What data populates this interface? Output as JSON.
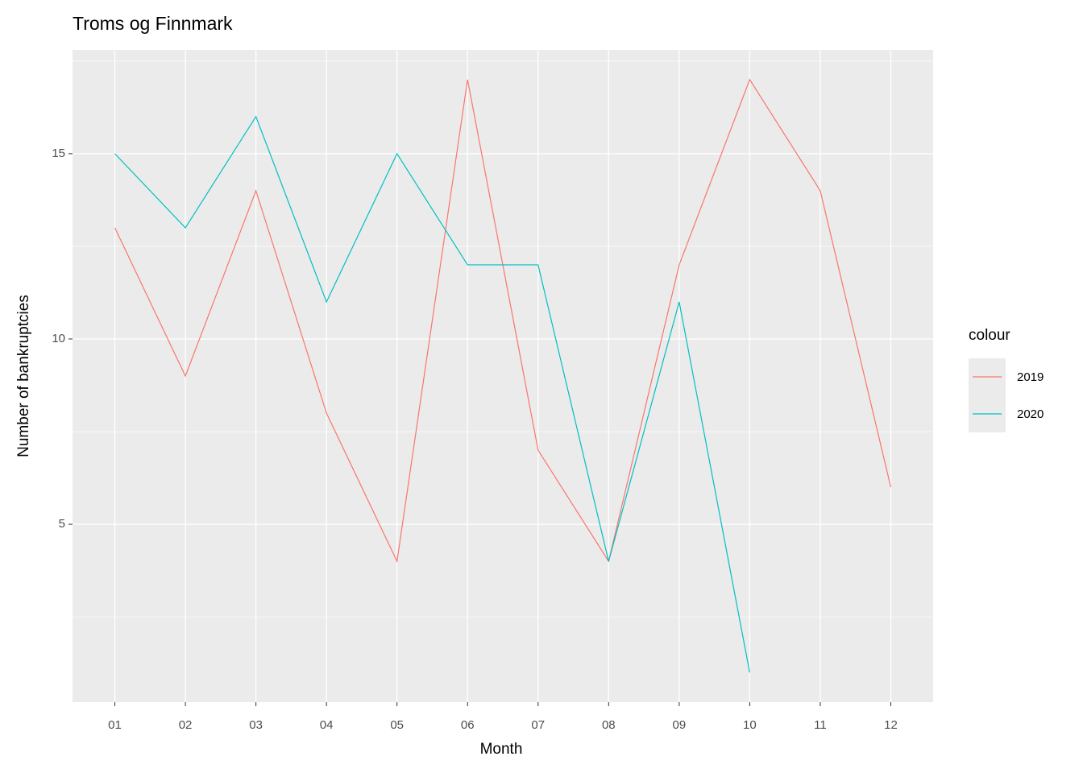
{
  "chart_data": {
    "type": "line",
    "title": "Troms og Finnmark",
    "x_label": "Month",
    "y_label": "Number of bankruptcies",
    "categories": [
      "01",
      "02",
      "03",
      "04",
      "05",
      "06",
      "07",
      "08",
      "09",
      "10",
      "11",
      "12"
    ],
    "series": [
      {
        "name": "2019",
        "color": "#F8766D",
        "values": [
          13,
          9,
          14,
          8,
          4,
          17,
          7,
          4,
          12,
          17,
          14,
          6
        ]
      },
      {
        "name": "2020",
        "color": "#00BFC4",
        "values": [
          15,
          13,
          16,
          11,
          15,
          12,
          12,
          4,
          11,
          1,
          null,
          null
        ]
      }
    ],
    "ylim": [
      0.2,
      17.8
    ],
    "yticks": [
      5,
      10,
      15
    ],
    "y_minor_ticks": [
      2.5,
      7.5,
      12.5,
      17.5
    ],
    "grid": true,
    "legend_title": "colour",
    "legend_position": "right"
  }
}
